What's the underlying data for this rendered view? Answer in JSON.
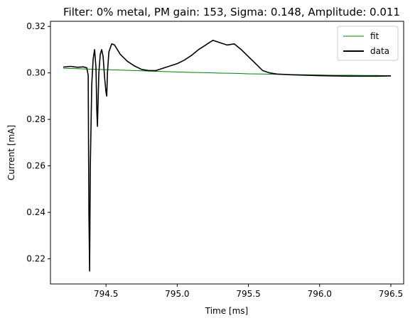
{
  "chart_data": {
    "type": "line",
    "title": "Filter: 0% metal, PM gain: 153, Sigma: 0.148, Amplitude: 0.011",
    "xlabel": "Time [ms]",
    "ylabel": "Current [mA]",
    "xlim": [
      794.11,
      796.59
    ],
    "ylim": [
      0.2092,
      0.3222
    ],
    "xticks": [
      794.5,
      795.0,
      795.5,
      796.0,
      796.5
    ],
    "xtick_labels": [
      "794.5",
      "795.0",
      "795.5",
      "796.0",
      "796.5"
    ],
    "yticks": [
      0.22,
      0.24,
      0.26,
      0.28,
      0.3,
      0.32
    ],
    "ytick_labels": [
      "0.22",
      "0.24",
      "0.26",
      "0.28",
      "0.30",
      "0.32"
    ],
    "grid": false,
    "legend": {
      "position": "upper right",
      "entries": [
        "fit",
        "data"
      ]
    },
    "series": [
      {
        "name": "fit",
        "color": "#008000",
        "x": [
          794.2,
          794.3,
          794.4,
          794.5,
          794.6,
          794.7,
          794.8,
          794.9,
          795.0,
          795.1,
          795.2,
          795.3,
          795.4,
          795.5,
          795.6,
          795.7,
          795.8,
          795.9,
          796.0,
          796.1,
          796.2,
          796.3,
          796.4,
          796.5
        ],
        "y": [
          0.302,
          0.3018,
          0.3016,
          0.3014,
          0.3012,
          0.301,
          0.3008,
          0.3006,
          0.3004,
          0.3002,
          0.3001,
          0.2999,
          0.2998,
          0.2996,
          0.2995,
          0.2994,
          0.2993,
          0.2992,
          0.2991,
          0.299,
          0.299,
          0.2989,
          0.2989,
          0.2988
        ]
      },
      {
        "name": "data",
        "color": "#000000",
        "x": [
          794.2,
          794.25,
          794.3,
          794.34,
          794.365,
          794.375,
          794.38,
          794.385,
          794.39,
          794.4,
          794.41,
          794.42,
          794.43,
          794.435,
          794.44,
          794.45,
          794.46,
          794.47,
          794.48,
          794.49,
          794.5,
          794.505,
          794.51,
          794.52,
          794.54,
          794.56,
          794.58,
          794.6,
          794.65,
          794.7,
          794.75,
          794.8,
          794.85,
          794.9,
          794.95,
          795.0,
          795.05,
          795.1,
          795.15,
          795.2,
          795.25,
          795.3,
          795.35,
          795.4,
          795.45,
          795.5,
          795.55,
          795.6,
          795.65,
          795.7,
          795.8,
          795.9,
          796.0,
          796.1,
          796.2,
          796.3,
          796.4,
          796.5
        ],
        "y": [
          0.3025,
          0.3028,
          0.3024,
          0.3026,
          0.3022,
          0.299,
          0.24,
          0.2148,
          0.26,
          0.295,
          0.306,
          0.31,
          0.302,
          0.285,
          0.277,
          0.3,
          0.308,
          0.31,
          0.307,
          0.298,
          0.2915,
          0.29,
          0.3,
          0.309,
          0.3125,
          0.312,
          0.31,
          0.308,
          0.305,
          0.303,
          0.3015,
          0.301,
          0.301,
          0.302,
          0.303,
          0.304,
          0.3055,
          0.3075,
          0.31,
          0.312,
          0.314,
          0.313,
          0.312,
          0.3125,
          0.31,
          0.307,
          0.304,
          0.301,
          0.3,
          0.2995,
          0.2992,
          0.299,
          0.2988,
          0.2987,
          0.2986,
          0.2986,
          0.2986,
          0.2987
        ]
      }
    ]
  }
}
